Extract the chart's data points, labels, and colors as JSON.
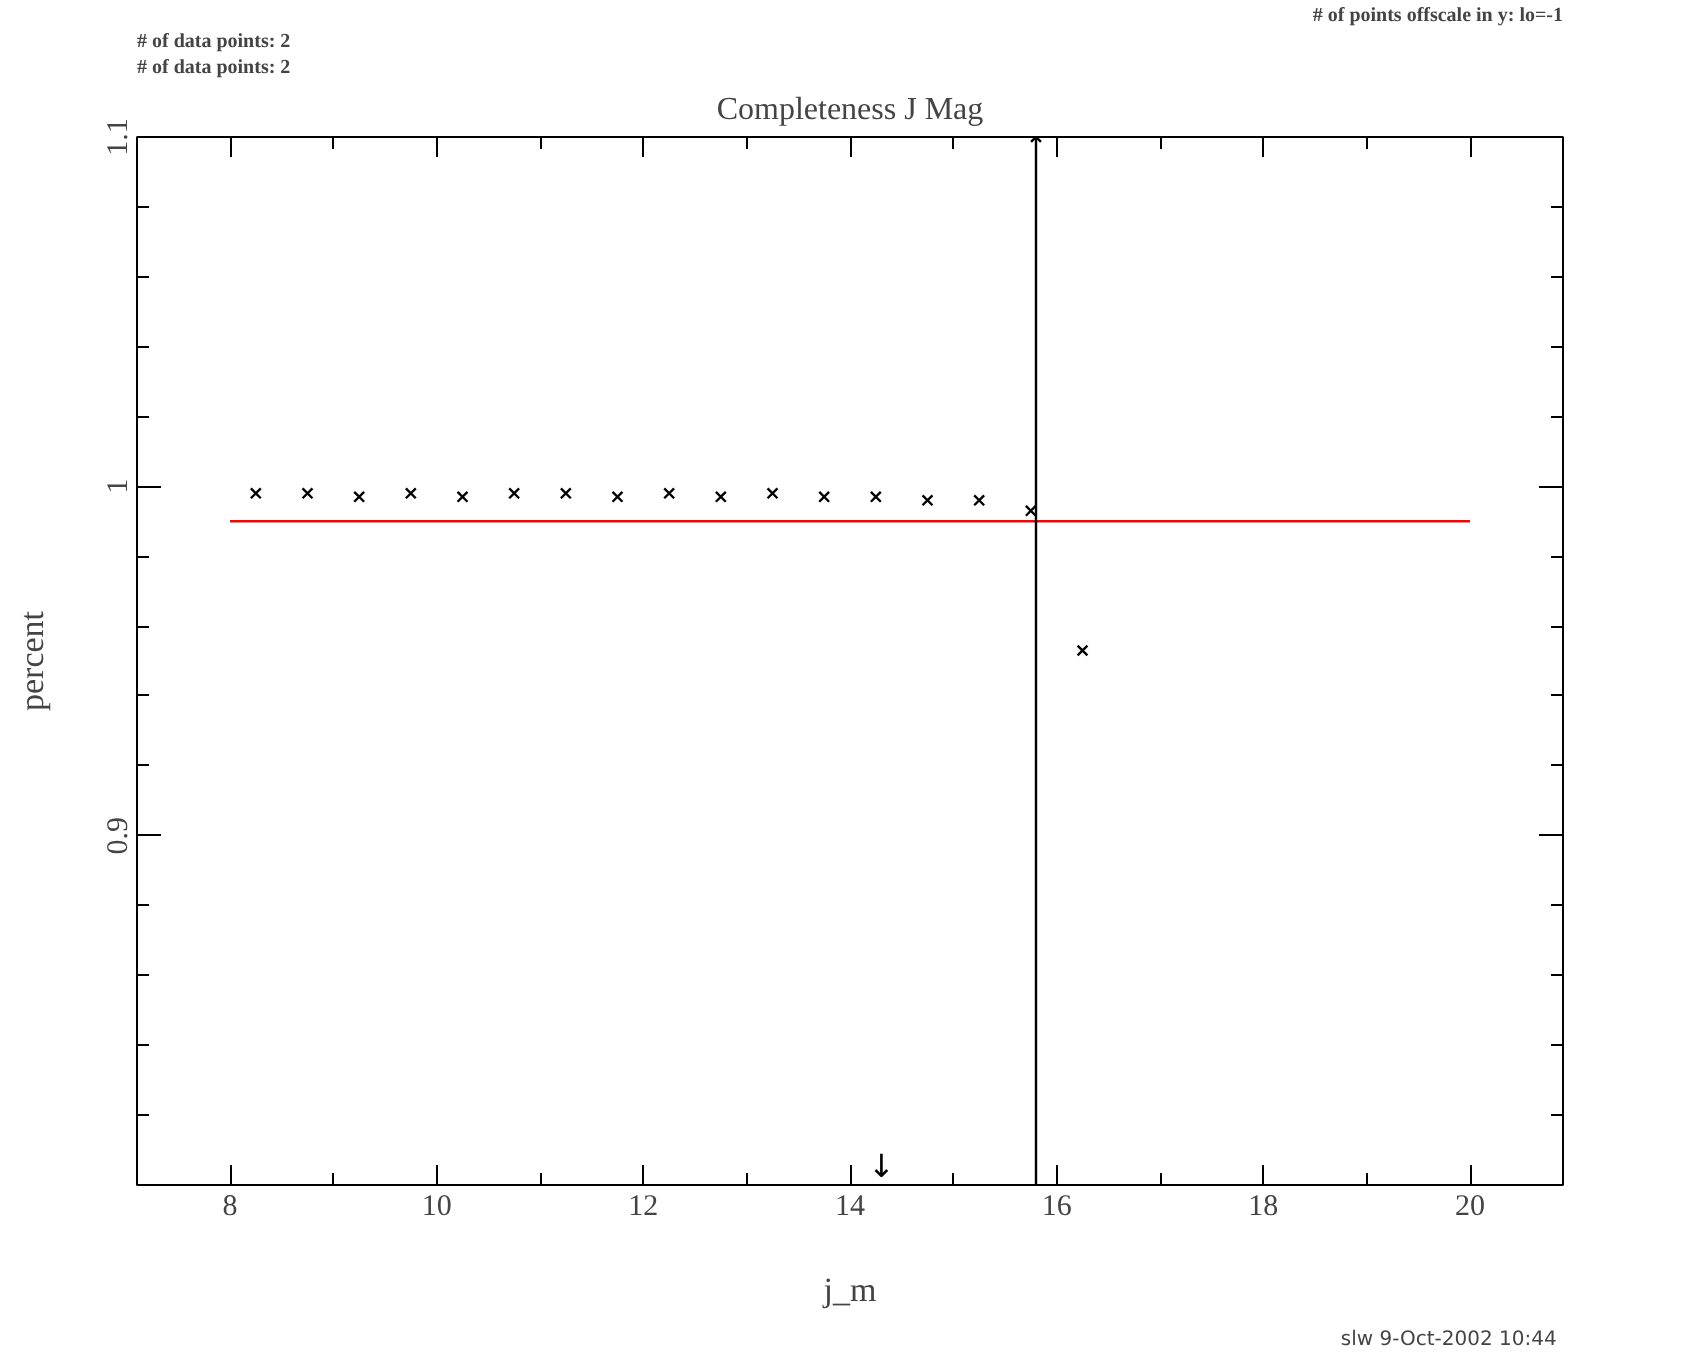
{
  "chart_data": {
    "type": "scatter",
    "title": "Completeness J Mag",
    "xlabel": "j_m",
    "ylabel": "percent",
    "xlim": [
      7.1,
      20.9
    ],
    "ylim": [
      0.8,
      1.1
    ],
    "xticks": [
      8,
      10,
      12,
      14,
      16,
      18,
      20
    ],
    "yticks": [
      0.9,
      1,
      1.1
    ],
    "grid": false,
    "series": [
      {
        "marker": "cross",
        "color": "#000000",
        "x": [
          8.25,
          8.75,
          9.25,
          9.75,
          10.25,
          10.75,
          11.25,
          11.75,
          12.25,
          12.75,
          13.25,
          13.75,
          14.25,
          14.75,
          15.25,
          15.75,
          16.25,
          15.8
        ],
        "values": [
          0.998,
          0.998,
          0.997,
          0.998,
          0.997,
          0.998,
          0.998,
          0.997,
          0.998,
          0.997,
          0.998,
          0.997,
          0.997,
          0.996,
          0.996,
          0.993,
          0.953,
          1.1
        ]
      },
      {
        "type": "line",
        "color": "#ff0000",
        "x": [
          8,
          20
        ],
        "values": [
          0.99,
          0.99
        ]
      },
      {
        "type": "line",
        "color": "#000000",
        "x": [
          15.8,
          15.8
        ],
        "values": [
          0.8,
          1.1
        ]
      }
    ],
    "annotations": [
      "# of data points: 2",
      "# of data points: 2",
      "# of points offscale in y: lo=-1",
      "slw  9-Oct-2002 10:44",
      "↓"
    ]
  }
}
